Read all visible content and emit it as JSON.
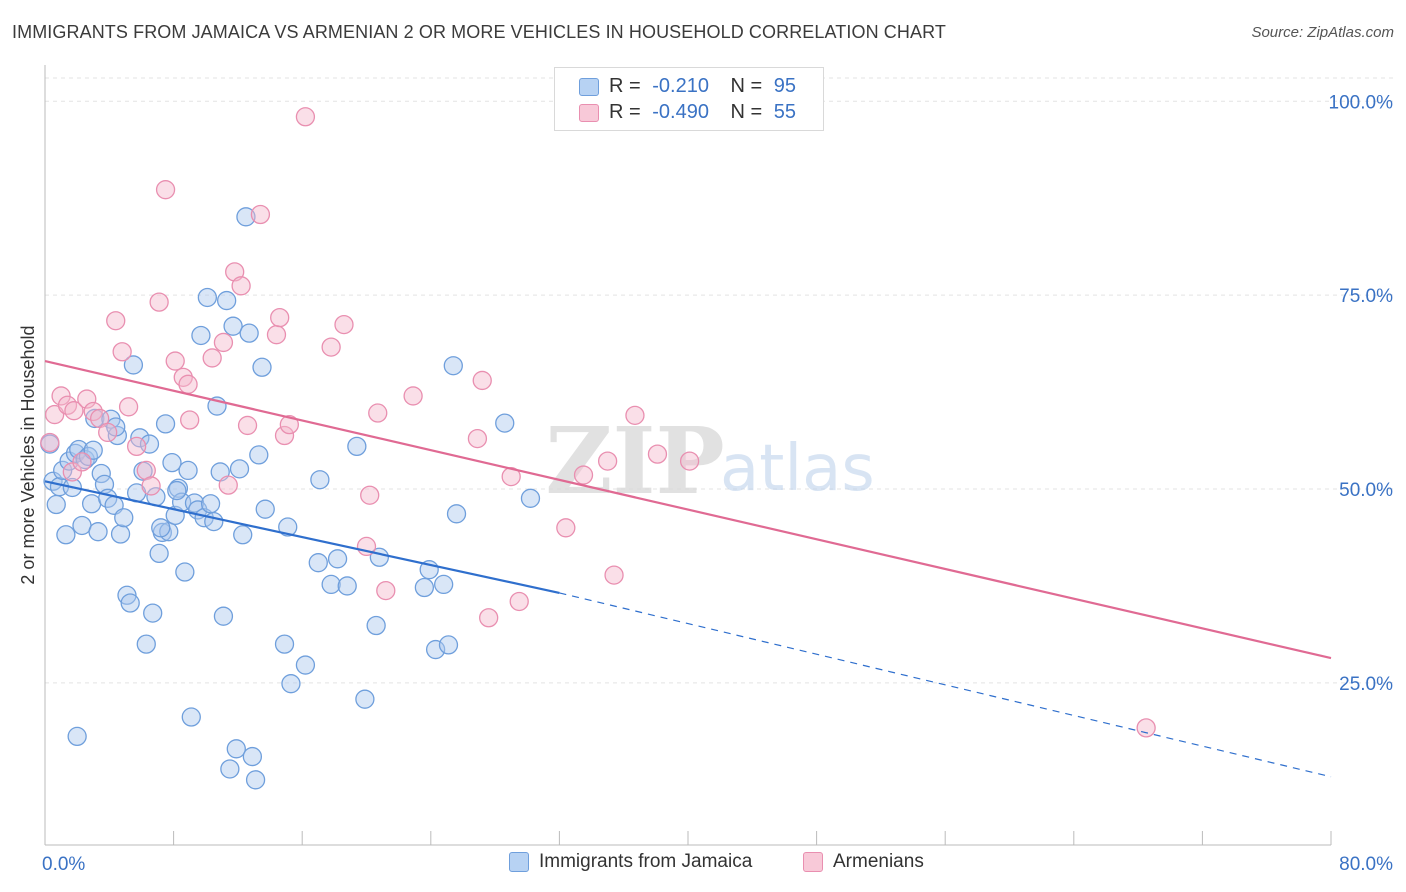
{
  "title": "IMMIGRANTS FROM JAMAICA VS ARMENIAN 2 OR MORE VEHICLES IN HOUSEHOLD CORRELATION CHART",
  "source": "Source: ZipAtlas.com",
  "watermark": {
    "zip": "ZIP",
    "atlas": "atlas"
  },
  "colors": {
    "blue": "#3a72c4",
    "blue_fill": "#aac8ee",
    "blue_line": "#2f6fcd",
    "pink": "#e0709a",
    "pink_fill": "#f5b8cc",
    "pink_line": "#e06a93",
    "grid": "#e3e3e3",
    "axis_text": "#3a72c4"
  },
  "stats": [
    {
      "series": "Immigrants from Jamaica",
      "r_label": "R =",
      "r": "-0.210",
      "n_label": "N =",
      "n": "95"
    },
    {
      "series": "Armenians",
      "r_label": "R =",
      "r": "-0.490",
      "n_label": "N =",
      "n": "55"
    }
  ],
  "chart_data": {
    "type": "scatter",
    "title": "IMMIGRANTS FROM JAMAICA VS ARMENIAN 2 OR MORE VEHICLES IN HOUSEHOLD CORRELATION CHART",
    "xlabel": "",
    "ylabel": "2 or more Vehicles in Household",
    "xlim": [
      0,
      80
    ],
    "ylim": [
      5,
      103
    ],
    "x_tick_labels": [
      "0.0%",
      "80.0%"
    ],
    "y_ticks": [
      25,
      50,
      75,
      100
    ],
    "y_tick_labels": [
      "25.0%",
      "50.0%",
      "75.0%",
      "100.0%"
    ],
    "grid": true,
    "legend_position": "bottom",
    "series": [
      {
        "name": "Immigrants from Jamaica",
        "color": "#3a72c4",
        "trend": {
          "x0": 0,
          "y0": 51.0,
          "x1": 32,
          "y1": 36.6,
          "dashed_to_x": 80,
          "dashed_to_y": 12.9
        },
        "points": [
          [
            0.3,
            55.8
          ],
          [
            0.5,
            51.0
          ],
          [
            0.7,
            48.0
          ],
          [
            0.9,
            50.3
          ],
          [
            1.1,
            52.4
          ],
          [
            1.3,
            44.1
          ],
          [
            1.5,
            53.6
          ],
          [
            1.7,
            50.2
          ],
          [
            1.9,
            54.6
          ],
          [
            2.1,
            55.1
          ],
          [
            2.3,
            45.3
          ],
          [
            2.5,
            53.8
          ],
          [
            2.7,
            54.2
          ],
          [
            2.9,
            48.1
          ],
          [
            3.1,
            59.1
          ],
          [
            3.3,
            44.5
          ],
          [
            3.5,
            52.0
          ],
          [
            3.7,
            50.6
          ],
          [
            3.9,
            48.8
          ],
          [
            4.1,
            59.0
          ],
          [
            4.3,
            47.9
          ],
          [
            4.5,
            56.9
          ],
          [
            4.7,
            44.2
          ],
          [
            4.9,
            46.3
          ],
          [
            5.1,
            36.3
          ],
          [
            5.3,
            35.3
          ],
          [
            5.5,
            66.0
          ],
          [
            5.7,
            49.5
          ],
          [
            5.9,
            56.6
          ],
          [
            6.1,
            52.3
          ],
          [
            6.3,
            30.0
          ],
          [
            6.5,
            55.8
          ],
          [
            6.7,
            34.0
          ],
          [
            6.9,
            49.0
          ],
          [
            7.1,
            41.7
          ],
          [
            7.3,
            44.4
          ],
          [
            7.5,
            58.4
          ],
          [
            7.7,
            44.5
          ],
          [
            7.9,
            53.4
          ],
          [
            8.1,
            46.6
          ],
          [
            8.3,
            50.1
          ],
          [
            8.5,
            48.3
          ],
          [
            8.7,
            39.3
          ],
          [
            8.9,
            52.4
          ],
          [
            9.1,
            20.6
          ],
          [
            9.3,
            48.2
          ],
          [
            9.5,
            47.3
          ],
          [
            9.7,
            69.8
          ],
          [
            9.9,
            46.3
          ],
          [
            10.1,
            74.7
          ],
          [
            10.3,
            48.1
          ],
          [
            10.5,
            45.8
          ],
          [
            10.7,
            60.7
          ],
          [
            10.9,
            52.2
          ],
          [
            11.1,
            33.6
          ],
          [
            11.3,
            74.3
          ],
          [
            11.5,
            13.9
          ],
          [
            11.7,
            71.0
          ],
          [
            11.9,
            16.5
          ],
          [
            12.1,
            52.6
          ],
          [
            12.3,
            44.1
          ],
          [
            12.5,
            85.1
          ],
          [
            12.7,
            70.1
          ],
          [
            12.9,
            15.5
          ],
          [
            13.1,
            12.5
          ],
          [
            13.3,
            54.4
          ],
          [
            13.5,
            65.7
          ],
          [
            13.7,
            47.4
          ],
          [
            8.2,
            49.8
          ],
          [
            14.9,
            30.0
          ],
          [
            15.1,
            45.1
          ],
          [
            15.3,
            24.9
          ],
          [
            16.2,
            27.3
          ],
          [
            17.0,
            40.5
          ],
          [
            17.1,
            51.2
          ],
          [
            17.8,
            37.7
          ],
          [
            18.2,
            41.0
          ],
          [
            18.8,
            37.5
          ],
          [
            19.4,
            55.5
          ],
          [
            19.9,
            22.9
          ],
          [
            20.6,
            32.4
          ],
          [
            20.8,
            41.2
          ],
          [
            23.6,
            37.3
          ],
          [
            23.9,
            39.6
          ],
          [
            24.3,
            29.3
          ],
          [
            24.8,
            37.7
          ],
          [
            25.1,
            29.9
          ],
          [
            25.4,
            65.9
          ],
          [
            25.6,
            46.8
          ],
          [
            28.6,
            58.5
          ],
          [
            30.2,
            48.8
          ],
          [
            2.0,
            18.1
          ],
          [
            3.0,
            55.0
          ],
          [
            7.2,
            45.0
          ],
          [
            4.4,
            58.0
          ]
        ]
      },
      {
        "name": "Armenians",
        "color": "#e0709a",
        "trend": {
          "x0": 0,
          "y0": 66.5,
          "x1": 80,
          "y1": 28.2
        },
        "points": [
          [
            0.3,
            56.0
          ],
          [
            0.6,
            59.6
          ],
          [
            1.0,
            62.0
          ],
          [
            1.4,
            60.8
          ],
          [
            1.7,
            52.2
          ],
          [
            1.8,
            60.1
          ],
          [
            2.3,
            53.5
          ],
          [
            2.6,
            61.6
          ],
          [
            3.0,
            60.0
          ],
          [
            3.4,
            59.1
          ],
          [
            3.9,
            57.3
          ],
          [
            4.4,
            71.7
          ],
          [
            4.8,
            67.7
          ],
          [
            5.2,
            60.6
          ],
          [
            5.7,
            55.5
          ],
          [
            6.3,
            52.4
          ],
          [
            6.6,
            50.4
          ],
          [
            7.1,
            74.1
          ],
          [
            7.5,
            88.6
          ],
          [
            8.1,
            66.5
          ],
          [
            8.6,
            64.4
          ],
          [
            8.9,
            63.5
          ],
          [
            9.0,
            58.9
          ],
          [
            10.4,
            66.9
          ],
          [
            11.1,
            68.9
          ],
          [
            11.4,
            50.5
          ],
          [
            11.8,
            78.0
          ],
          [
            12.2,
            76.2
          ],
          [
            12.6,
            58.2
          ],
          [
            13.4,
            85.4
          ],
          [
            14.4,
            69.9
          ],
          [
            14.6,
            72.1
          ],
          [
            14.9,
            56.9
          ],
          [
            15.2,
            58.3
          ],
          [
            16.2,
            98.0
          ],
          [
            17.8,
            68.3
          ],
          [
            18.6,
            71.2
          ],
          [
            20.0,
            42.6
          ],
          [
            20.2,
            49.2
          ],
          [
            20.7,
            59.8
          ],
          [
            21.2,
            36.9
          ],
          [
            22.9,
            62.0
          ],
          [
            26.9,
            56.5
          ],
          [
            27.2,
            64.0
          ],
          [
            27.6,
            33.4
          ],
          [
            29.0,
            51.6
          ],
          [
            29.5,
            35.5
          ],
          [
            32.4,
            45.0
          ],
          [
            33.5,
            51.8
          ],
          [
            35.0,
            53.6
          ],
          [
            35.4,
            38.9
          ],
          [
            36.7,
            59.5
          ],
          [
            38.1,
            54.5
          ],
          [
            40.1,
            53.6
          ],
          [
            68.5,
            19.2
          ]
        ]
      }
    ]
  }
}
